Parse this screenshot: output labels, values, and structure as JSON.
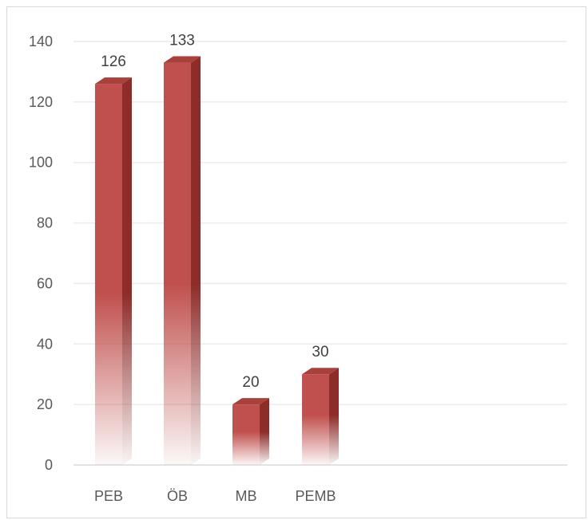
{
  "chart_data": {
    "type": "bar",
    "style": "3d-column-gradient",
    "categories": [
      "PEB",
      "ÖB",
      "MB",
      "PEMB"
    ],
    "values": [
      126,
      133,
      20,
      30
    ],
    "data_labels": [
      "126",
      "133",
      "20",
      "30"
    ],
    "title": "",
    "xlabel": "",
    "ylabel": "",
    "ylim": [
      0,
      140
    ],
    "yticks": [
      0,
      20,
      40,
      60,
      80,
      100,
      120,
      140
    ],
    "ytick_labels": [
      "0",
      "20",
      "40",
      "60",
      "80",
      "100",
      "120",
      "140"
    ],
    "grid": true,
    "legend": "none",
    "colors": {
      "bar_front": "#c0504d",
      "bar_side": "#8c2d2a",
      "bar_top": "#a8403c",
      "gridline": "#ececec",
      "axis_line": "#d9d9d9",
      "text": "#595959"
    }
  }
}
